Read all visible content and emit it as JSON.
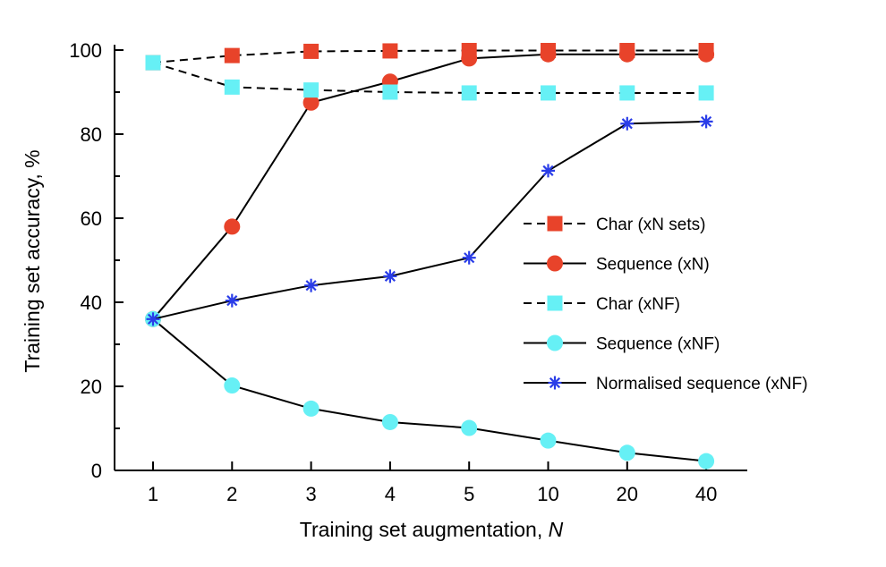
{
  "chart_data": {
    "type": "line",
    "title": "",
    "xlabel": "Training set augmentation, ",
    "xlabel_italic": "N",
    "ylabel": "Training set accuracy, %",
    "ylim": [
      0,
      100
    ],
    "yticks": [
      "0",
      "20",
      "40",
      "60",
      "80",
      "100"
    ],
    "categories": [
      "1",
      "2",
      "3",
      "4",
      "5",
      "10",
      "20",
      "40"
    ],
    "grid": false,
    "legend_position": "right",
    "series": [
      {
        "name": "Char (xN sets)",
        "values": [
          97,
          98.7,
          99.7,
          99.8,
          99.9,
          99.9,
          99.9,
          99.9
        ],
        "color": "#e8432a",
        "marker": "square",
        "line": "dashed"
      },
      {
        "name": "Sequence (xN)",
        "values": [
          36,
          58,
          87.5,
          92.5,
          98,
          99,
          99,
          99
        ],
        "color": "#e8432a",
        "marker": "circle",
        "line": "solid"
      },
      {
        "name": "Char (xNF)",
        "values": [
          97,
          91.2,
          90.5,
          90,
          89.8,
          89.8,
          89.8,
          89.8
        ],
        "color": "#66f0f5",
        "marker": "square",
        "line": "dashed"
      },
      {
        "name": "Sequence (xNF)",
        "values": [
          36,
          20.2,
          14.7,
          11.5,
          10.1,
          7.1,
          4.2,
          2.2
        ],
        "color": "#66f0f5",
        "marker": "circle",
        "line": "solid"
      },
      {
        "name": "Normalised sequence (xNF)",
        "values": [
          36,
          40.4,
          44,
          46.2,
          50.6,
          71.3,
          82.5,
          83
        ],
        "color": "#2a3de8",
        "marker": "asterisk",
        "line": "solid"
      }
    ]
  }
}
